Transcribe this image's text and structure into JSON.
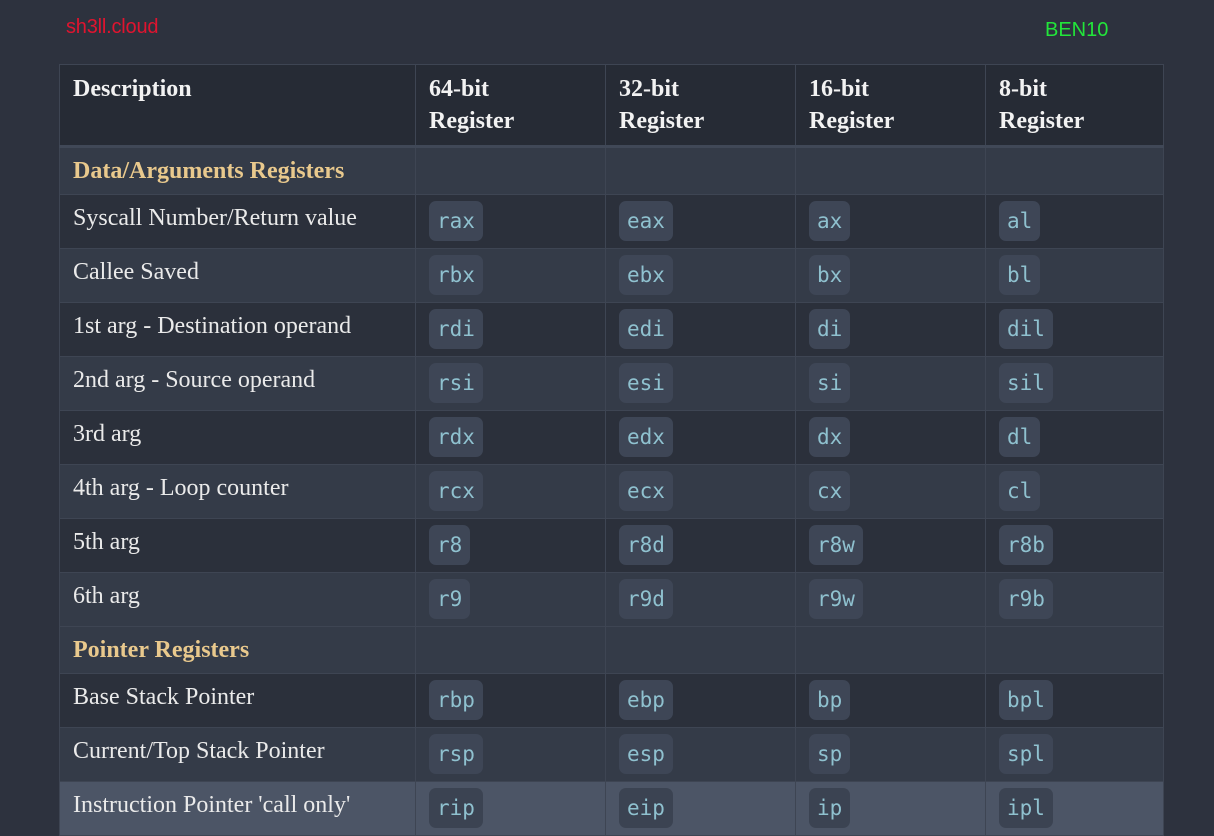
{
  "header": {
    "brand": "sh3ll.cloud",
    "user": "BEN10"
  },
  "table": {
    "columns": [
      "Description",
      "64-bit\nRegister",
      "32-bit\nRegister",
      "16-bit\nRegister",
      "8-bit\nRegister"
    ],
    "sections": [
      {
        "title": "Data/Arguments Registers",
        "rows": [
          {
            "desc": "Syscall Number/Return value",
            "r64": "rax",
            "r32": "eax",
            "r16": "ax",
            "r8": "al"
          },
          {
            "desc": "Callee Saved",
            "r64": "rbx",
            "r32": "ebx",
            "r16": "bx",
            "r8": "bl"
          },
          {
            "desc": "1st arg - Destination operand",
            "r64": "rdi",
            "r32": "edi",
            "r16": "di",
            "r8": "dil"
          },
          {
            "desc": "2nd arg - Source operand",
            "r64": "rsi",
            "r32": "esi",
            "r16": "si",
            "r8": "sil"
          },
          {
            "desc": "3rd arg",
            "r64": "rdx",
            "r32": "edx",
            "r16": "dx",
            "r8": "dl"
          },
          {
            "desc": "4th arg - Loop counter",
            "r64": "rcx",
            "r32": "ecx",
            "r16": "cx",
            "r8": "cl"
          },
          {
            "desc": "5th arg",
            "r64": "r8",
            "r32": "r8d",
            "r16": "r8w",
            "r8": "r8b"
          },
          {
            "desc": "6th arg",
            "r64": "r9",
            "r32": "r9d",
            "r16": "r9w",
            "r8": "r9b"
          }
        ]
      },
      {
        "title": "Pointer Registers",
        "rows": [
          {
            "desc": "Base Stack Pointer",
            "r64": "rbp",
            "r32": "ebp",
            "r16": "bp",
            "r8": "bpl"
          },
          {
            "desc": "Current/Top Stack Pointer",
            "r64": "rsp",
            "r32": "esp",
            "r16": "sp",
            "r8": "spl"
          },
          {
            "desc": "Instruction Pointer 'call only'",
            "r64": "rip",
            "r32": "eip",
            "r16": "ip",
            "r8": "ipl"
          }
        ]
      }
    ]
  },
  "colors": {
    "background": "#2d323e",
    "brand": "#e0142f",
    "user": "#22e53a",
    "section_title": "#e9c98d",
    "code_text": "#8fc1cf",
    "highlight_row": "#4c5566"
  }
}
